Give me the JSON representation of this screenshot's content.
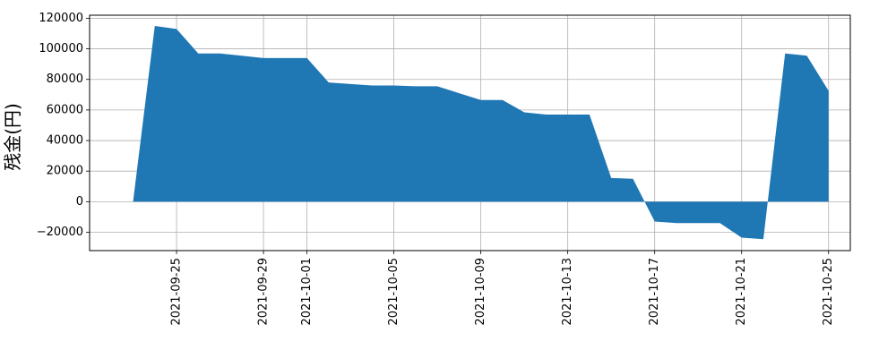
{
  "chart_data": {
    "type": "area",
    "title": "",
    "xlabel": "",
    "ylabel": "残金(円)",
    "grid": true,
    "fill_color": "#1f77b4",
    "xlim": [
      "2021-09-21",
      "2021-10-26"
    ],
    "ylim": [
      -32000,
      122000
    ],
    "x_ticks": [
      "2021-09-25",
      "2021-09-29",
      "2021-10-01",
      "2021-10-05",
      "2021-10-09",
      "2021-10-13",
      "2021-10-17",
      "2021-10-21",
      "2021-10-25"
    ],
    "y_ticks": [
      -20000,
      0,
      20000,
      40000,
      60000,
      80000,
      100000,
      120000
    ],
    "y_tick_labels": [
      "−20000",
      "0",
      "20000",
      "40000",
      "60000",
      "80000",
      "100000",
      "120000"
    ],
    "x": [
      "2021-09-23",
      "2021-09-24",
      "2021-09-25",
      "2021-09-26",
      "2021-09-27",
      "2021-09-28",
      "2021-09-29",
      "2021-09-30",
      "2021-10-01",
      "2021-10-02",
      "2021-10-03",
      "2021-10-04",
      "2021-10-05",
      "2021-10-06",
      "2021-10-07",
      "2021-10-08",
      "2021-10-09",
      "2021-10-10",
      "2021-10-11",
      "2021-10-12",
      "2021-10-13",
      "2021-10-14",
      "2021-10-15",
      "2021-10-16",
      "2021-10-17",
      "2021-10-18",
      "2021-10-19",
      "2021-10-20",
      "2021-10-21",
      "2021-10-22",
      "2021-10-23",
      "2021-10-24",
      "2021-10-25"
    ],
    "values": [
      0,
      115000,
      113000,
      97000,
      97000,
      95500,
      94000,
      94000,
      94000,
      78000,
      77000,
      76000,
      76000,
      75500,
      75500,
      71000,
      66500,
      66500,
      58500,
      57000,
      57000,
      57000,
      15500,
      15000,
      -13000,
      -14000,
      -14000,
      -14000,
      -23500,
      -24500,
      97000,
      95500,
      72500
    ]
  }
}
